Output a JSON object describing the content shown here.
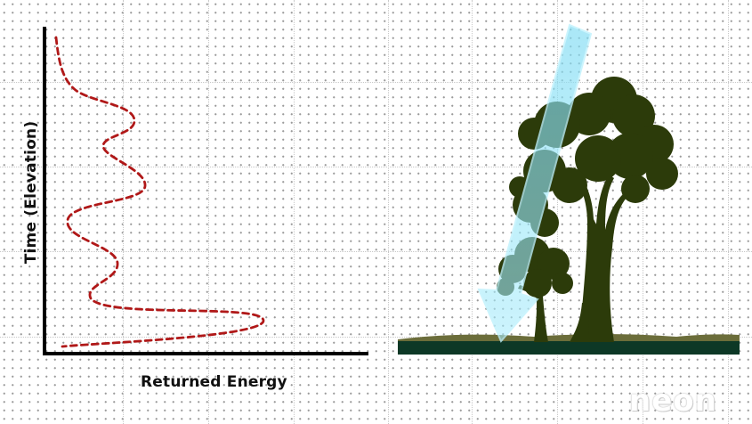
{
  "labels": {
    "y_axis": "Time (Elevation)",
    "x_axis": "Returned Energy"
  },
  "logo": {
    "text": "neon"
  },
  "colors": {
    "waveform": "#b01818",
    "tree_foliage": "#2c3b0a",
    "ground_dark": "#0d3826",
    "ground_light": "#6b6d3a",
    "laser_pulse": "#8fe3f6",
    "axes": "#000000"
  },
  "icons": {
    "trees": "tree-silhouette-icon",
    "pulse": "laser-arrow-icon"
  }
}
